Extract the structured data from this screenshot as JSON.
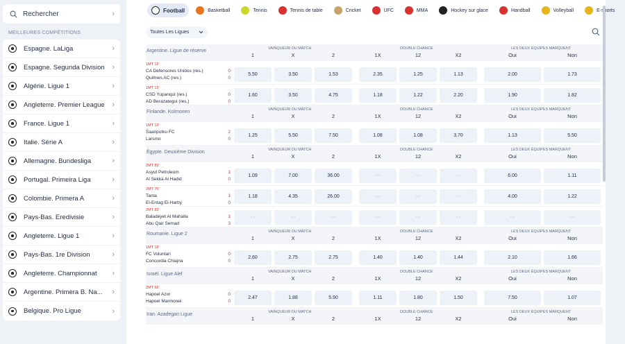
{
  "sidebar": {
    "search_label": "Rechercher",
    "section_title": "MEILLEURES COMPÉTITIONS",
    "items": [
      {
        "label": "Espagne. LaLiga"
      },
      {
        "label": "Espagne. Segunda Division"
      },
      {
        "label": "Algérie. Ligue 1"
      },
      {
        "label": "Angleterre. Premier League"
      },
      {
        "label": "France. Ligue 1"
      },
      {
        "label": "Italie. Série A"
      },
      {
        "label": "Allemagne. Bundesliga"
      },
      {
        "label": "Portugal. Primeira Liga"
      },
      {
        "label": "Colombie. Primera A"
      },
      {
        "label": "Pays-Bas. Eredivisie"
      },
      {
        "label": "Angleterre. Ligue 1"
      },
      {
        "label": "Pays-Bas. 1re Division"
      },
      {
        "label": "Angleterre. Championnat"
      },
      {
        "label": "Argentine. Primera B. Na..."
      },
      {
        "label": "Belgique. Pro Ligue"
      }
    ]
  },
  "sports": [
    {
      "label": "Football",
      "icon": "football-icon",
      "color": "#222222",
      "active": true
    },
    {
      "label": "Basketball",
      "icon": "basketball-icon",
      "color": "#e8741c"
    },
    {
      "label": "Tennis",
      "icon": "tennis-icon",
      "color": "#c9d62a"
    },
    {
      "label": "Tennis de table",
      "icon": "table-tennis-icon",
      "color": "#d8312f"
    },
    {
      "label": "Cricket",
      "icon": "cricket-icon",
      "color": "#c9a26a"
    },
    {
      "label": "UFC",
      "icon": "ufc-icon",
      "color": "#d8312f"
    },
    {
      "label": "MMA",
      "icon": "mma-icon",
      "color": "#d8312f"
    },
    {
      "label": "Hockey sur glace",
      "icon": "ice-hockey-icon",
      "color": "#222222"
    },
    {
      "label": "Handball",
      "icon": "handball-icon",
      "color": "#d8312f"
    },
    {
      "label": "Volleyball",
      "icon": "volleyball-icon",
      "color": "#e8b41c"
    },
    {
      "label": "E-sports",
      "icon": "esports-icon",
      "color": "#e8b41c"
    }
  ],
  "filter": {
    "league_select": "Toutes Les Ligues"
  },
  "headers": {
    "winner": "VAINQUEUR DU MATCH",
    "double": "DOUBLE CHANCE",
    "btts": "LES DEUX ÉQUIPES MARQUENT",
    "c1": "1",
    "cx": "X",
    "c2": "2",
    "c1x": "1X",
    "c12": "12",
    "cx2": "X2",
    "yes": "Oui",
    "no": "Non"
  },
  "leagues": [
    {
      "name": "Argentine. Ligue de réserve",
      "matches": [
        {
          "time": "1MT 15'",
          "home": "CA Defensores Unidos (res.)",
          "away": "Quilmes AC (res.)",
          "hs": "0",
          "as": "0",
          "odds": [
            "5.50",
            "3.50",
            "1.53",
            "2.35",
            "1.25",
            "1.13",
            "2.00",
            "1.73"
          ]
        },
        {
          "time": "1MT 15'",
          "home": "CSD Yupanqui (res.)",
          "away": "AD Berazategui (res.)",
          "hs": "0",
          "as": "0",
          "odds": [
            "1.60",
            "3.50",
            "4.75",
            "1.18",
            "1.22",
            "2.20",
            "1.90",
            "1.82"
          ]
        }
      ]
    },
    {
      "name": "Finlande. Kolmonen",
      "matches": [
        {
          "time": "1MT 19'",
          "home": "Saaripotku FC",
          "away": "Larsmo",
          "hs": "2",
          "as": "0",
          "odds": [
            "1.25",
            "5.50",
            "7.50",
            "1.08",
            "1.08",
            "3.70",
            "1.13",
            "5.50"
          ]
        }
      ]
    },
    {
      "name": "Égypte. Deuxième Division",
      "matches": [
        {
          "time": "2MT 83'",
          "home": "Asyut Petroleum",
          "away": "Al Sekka Al Hadid",
          "hs": "1",
          "as": "0",
          "odds": [
            "1.09",
            "7.00",
            "36.00",
            "-.-",
            "-.-",
            "-.-",
            "6.00",
            "1.11"
          ]
        },
        {
          "time": "2MT 76'",
          "home": "Tanta",
          "away": "El-Entag El-Harby",
          "hs": "1",
          "as": "0",
          "odds": [
            "1.18",
            "4.35",
            "26.00",
            "-.-",
            "-.-",
            "-.-",
            "4.00",
            "1.22"
          ]
        },
        {
          "time": "2MT 82'",
          "home": "Baladeyet Al Mahalla",
          "away": "Abu Qair Semad",
          "hs": "1",
          "as": "3",
          "odds": [
            "-.-",
            "-.-",
            "-.-",
            "-.-",
            "-.-",
            "-.-",
            "-.-",
            "-.-"
          ]
        }
      ]
    },
    {
      "name": "Roumanie. Ligue 2",
      "matches": [
        {
          "time": "1MT 18'",
          "home": "FC Voluntari",
          "away": "Concordia Chiajna",
          "hs": "0",
          "as": "0",
          "odds": [
            "2.60",
            "2.75",
            "2.75",
            "1.40",
            "1.40",
            "1.44",
            "2.10",
            "1.66"
          ]
        }
      ]
    },
    {
      "name": "Israël. Ligue Alef",
      "matches": [
        {
          "time": "2MT 66'",
          "home": "Hapoel Azor",
          "away": "Hapoel Marmorek",
          "hs": "0",
          "as": "0",
          "odds": [
            "2.47",
            "1.88",
            "5.90",
            "1.11",
            "1.80",
            "1.50",
            "7.50",
            "1.07"
          ]
        }
      ]
    },
    {
      "name": "Iran. Azadegan Ligue",
      "matches": []
    }
  ]
}
